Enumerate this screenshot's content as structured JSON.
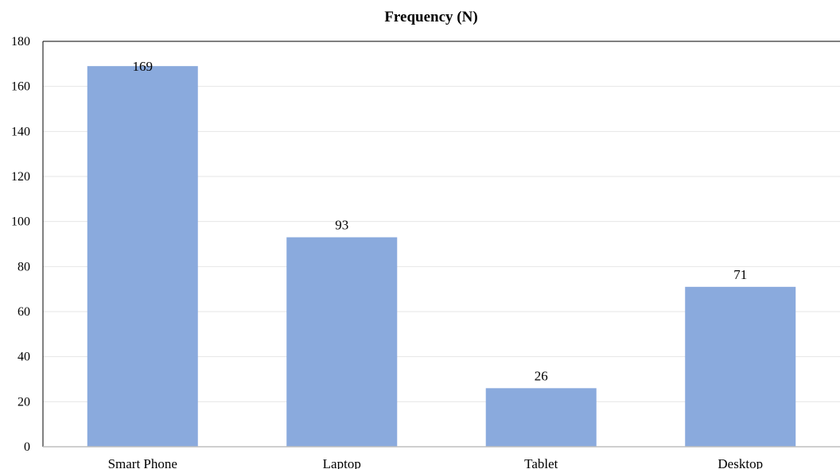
{
  "chart_data": {
    "type": "bar",
    "title": "Frequency (N)",
    "xlabel": "",
    "ylabel": "",
    "categories": [
      "Smart Phone",
      "Laptop",
      "Tablet",
      "Desktop"
    ],
    "values": [
      169,
      93,
      26,
      71
    ],
    "ylim": [
      0,
      180
    ],
    "yticks": [
      0,
      20,
      40,
      60,
      80,
      100,
      120,
      140,
      160,
      180
    ],
    "grid": true,
    "legend": "none",
    "bar_color": "#8aaadd"
  }
}
